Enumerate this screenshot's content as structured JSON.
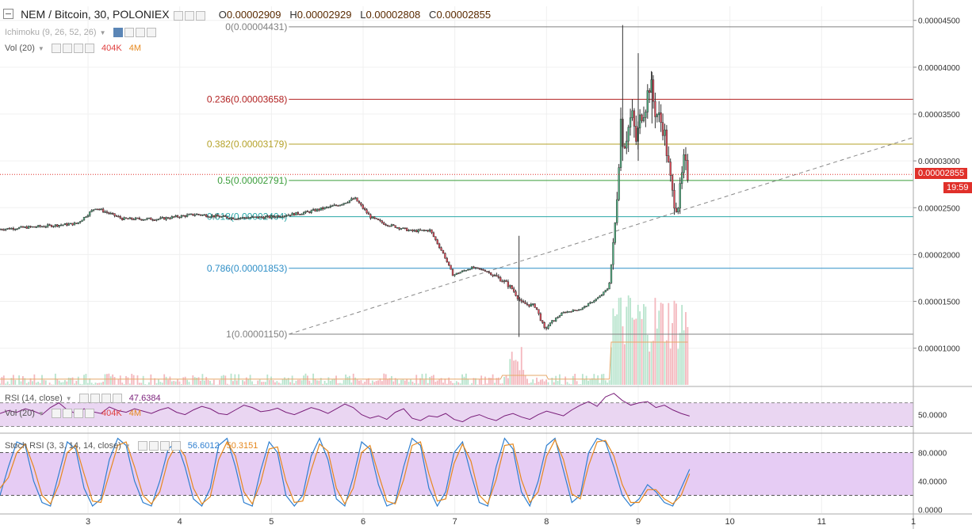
{
  "header": {
    "symbol": "NEM / Bitcoin, 30, POLONIEX",
    "open_key": "O",
    "open": "0.00002909",
    "high_key": "H",
    "high": "0.00002929",
    "low_key": "L",
    "low": "0.00002808",
    "close_key": "C",
    "close": "0.00002855"
  },
  "indicators": {
    "ichimoku": "Ichimoku (9, 26, 52, 26)",
    "vol": "Vol (20)",
    "vol_v1": "404K",
    "vol_v2": "4M",
    "rsi": "RSI (14, close)",
    "rsi_value": "47.6384",
    "vol2": "Vol (20)",
    "vol2_v1": "404K",
    "vol2_v2": "4M",
    "stoch": "Stoch RSI (3, 3, 14, 14, close)",
    "stoch_k": "56.6012",
    "stoch_d": "50.3151"
  },
  "colors": {
    "up": "#53b987",
    "down": "#eb4d5c",
    "candle_border": "#333333",
    "fib_0": "#808080",
    "fib_236": "#b22222",
    "fib_382": "#b5a22a",
    "fib_5": "#3a9d3a",
    "fib_618": "#2aa7a7",
    "fib_786": "#2f8fc7",
    "fib_1": "#808080",
    "rsi_line": "#7a1f7a",
    "rsi_band": "#ead6f2",
    "stoch_k": "#2f7fd0",
    "stoch_d": "#e6881e",
    "stoch_band": "#e6ccf4",
    "price_tag": "#e0302a",
    "time_tag": "#e0302a"
  },
  "price_tag": "0.00002855",
  "time_tag": "19:59",
  "chart_data": [
    {
      "type": "candlestick",
      "title": "NEM / Bitcoin, 30, POLONIEX",
      "x_ticks": [
        "3",
        "4",
        "5",
        "6",
        "7",
        "8",
        "9",
        "10",
        "11",
        "1"
      ],
      "y_ticks": [
        "0.00004500",
        "0.00004000",
        "0.00003500",
        "0.00003000",
        "0.00002500",
        "0.00002000",
        "0.00001500",
        "0.00001000"
      ],
      "ylim": [
        6e-06,
        4.65e-05
      ],
      "xlim": [
        2.04,
        12.0
      ],
      "fib_levels": [
        {
          "label": "0(0.00004431)",
          "value": 4.431e-05
        },
        {
          "label": "0.236(0.00003658)",
          "value": 3.658e-05
        },
        {
          "label": "0.382(0.00003179)",
          "value": 3.179e-05
        },
        {
          "label": "0.5(0.00002791)",
          "value": 2.791e-05
        },
        {
          "label": "0.618(0.00002404)",
          "value": 2.404e-05
        },
        {
          "label": "0.786(0.00001853)",
          "value": 1.853e-05
        },
        {
          "label": "1(0.00001150)",
          "value": 1.15e-05
        }
      ],
      "trendline": {
        "start": [
          5.19,
          1.15e-05
        ],
        "end": [
          12.0,
          3.25e-05
        ]
      },
      "last_price": 2.855e-05,
      "price_path": [
        [
          2.04,
          2.27e-05
        ],
        [
          2.5,
          2.3e-05
        ],
        [
          2.9,
          2.33e-05
        ],
        [
          3.1,
          2.5e-05
        ],
        [
          3.4,
          2.38e-05
        ],
        [
          3.8,
          2.38e-05
        ],
        [
          4.2,
          2.43e-05
        ],
        [
          4.6,
          2.39e-05
        ],
        [
          5.0,
          2.4e-05
        ],
        [
          5.4,
          2.45e-05
        ],
        [
          5.75,
          2.53e-05
        ],
        [
          5.93,
          2.6e-05
        ],
        [
          6.1,
          2.4e-05
        ],
        [
          6.25,
          2.33e-05
        ],
        [
          6.55,
          2.25e-05
        ],
        [
          6.75,
          2.26e-05
        ],
        [
          6.9,
          2e-05
        ],
        [
          7.0,
          1.78e-05
        ],
        [
          7.2,
          1.86e-05
        ],
        [
          7.35,
          1.83e-05
        ],
        [
          7.55,
          1.72e-05
        ],
        [
          7.65,
          1.63e-05
        ],
        [
          7.75,
          1.48e-05
        ],
        [
          7.9,
          1.45e-05
        ],
        [
          8.0,
          1.2e-05
        ],
        [
          8.1,
          1.3e-05
        ],
        [
          8.2,
          1.38e-05
        ],
        [
          8.4,
          1.42e-05
        ],
        [
          8.6,
          1.55e-05
        ],
        [
          8.7,
          1.65e-05
        ],
        [
          8.76,
          2.2e-05
        ],
        [
          8.8,
          2.8e-05
        ],
        [
          8.83,
          3.45e-05
        ],
        [
          8.86,
          3.15e-05
        ],
        [
          8.9,
          3.3e-05
        ],
        [
          8.95,
          3.5e-05
        ],
        [
          9.0,
          3.2e-05
        ],
        [
          9.05,
          3.5e-05
        ],
        [
          9.1,
          3.6e-05
        ],
        [
          9.15,
          3.85e-05
        ],
        [
          9.2,
          3.55e-05
        ],
        [
          9.3,
          3.35e-05
        ],
        [
          9.35,
          2.95e-05
        ],
        [
          9.4,
          2.6e-05
        ],
        [
          9.45,
          2.5e-05
        ],
        [
          9.48,
          2.7e-05
        ],
        [
          9.52,
          3e-05
        ],
        [
          9.56,
          2.85e-05
        ]
      ],
      "spikes": [
        {
          "x": 7.7,
          "low": 1.12e-05,
          "high": 2.2e-05
        },
        {
          "x": 8.83,
          "low": 3e-05,
          "high": 4.45e-05
        },
        {
          "x": 9.0,
          "low": 3e-05,
          "high": 4.15e-05
        },
        {
          "x": 9.15,
          "low": 3.4e-05,
          "high": 3.95e-05
        }
      ]
    },
    {
      "type": "line",
      "title": "RSI (14, close)",
      "y_ticks": [
        "50.0000"
      ],
      "ylim": [
        20,
        95
      ],
      "band": [
        30,
        70
      ],
      "last_value": 47.6384,
      "values": [
        52,
        57,
        54,
        60,
        56,
        50,
        62,
        70,
        58,
        52,
        60,
        55,
        52,
        63,
        57,
        54,
        60,
        56,
        52,
        58,
        62,
        54,
        50,
        58,
        64,
        60,
        52,
        50,
        58,
        66,
        62,
        55,
        57,
        61,
        54,
        50,
        56,
        62,
        58,
        52,
        60,
        68,
        62,
        50,
        44,
        48,
        42,
        54,
        60,
        44,
        40,
        48,
        46,
        52,
        42,
        38,
        46,
        50,
        44,
        40,
        48,
        52,
        46,
        42,
        50,
        56,
        52,
        48,
        58,
        66,
        72,
        64,
        80,
        86,
        74,
        66,
        70,
        72,
        62,
        66,
        58,
        52,
        47.6
      ]
    },
    {
      "type": "line",
      "title": "Stoch RSI (3, 3, 14, 14, close)",
      "y_ticks": [
        "80.0000",
        "40.0000",
        "0.0000"
      ],
      "ylim": [
        -5,
        105
      ],
      "band": [
        20,
        80
      ],
      "series": [
        {
          "name": "56.6012",
          "values": [
            20,
            60,
            95,
            90,
            40,
            10,
            5,
            50,
            95,
            85,
            30,
            5,
            15,
            70,
            100,
            90,
            40,
            10,
            5,
            40,
            85,
            95,
            60,
            15,
            5,
            30,
            90,
            100,
            60,
            10,
            5,
            55,
            95,
            80,
            20,
            5,
            20,
            75,
            100,
            70,
            15,
            5,
            45,
            95,
            85,
            35,
            5,
            10,
            60,
            100,
            90,
            30,
            5,
            25,
            80,
            95,
            50,
            10,
            5,
            60,
            100,
            85,
            25,
            5,
            40,
            90,
            100,
            55,
            10,
            20,
            80,
            100,
            95,
            60,
            20,
            5,
            15,
            35,
            25,
            10,
            5,
            30,
            56.6
          ]
        },
        {
          "name": "50.3151",
          "values": [
            30,
            45,
            80,
            92,
            60,
            20,
            8,
            35,
            80,
            90,
            50,
            12,
            10,
            50,
            90,
            95,
            60,
            20,
            8,
            25,
            70,
            92,
            75,
            30,
            8,
            18,
            70,
            95,
            75,
            25,
            8,
            38,
            85,
            88,
            40,
            10,
            12,
            55,
            92,
            82,
            30,
            8,
            30,
            80,
            90,
            50,
            12,
            8,
            42,
            90,
            95,
            50,
            12,
            15,
            65,
            92,
            68,
            20,
            8,
            42,
            90,
            92,
            42,
            10,
            25,
            75,
            98,
            70,
            22,
            15,
            62,
            95,
            97,
            75,
            35,
            10,
            10,
            28,
            28,
            15,
            8,
            20,
            50.3
          ]
        }
      ]
    }
  ]
}
